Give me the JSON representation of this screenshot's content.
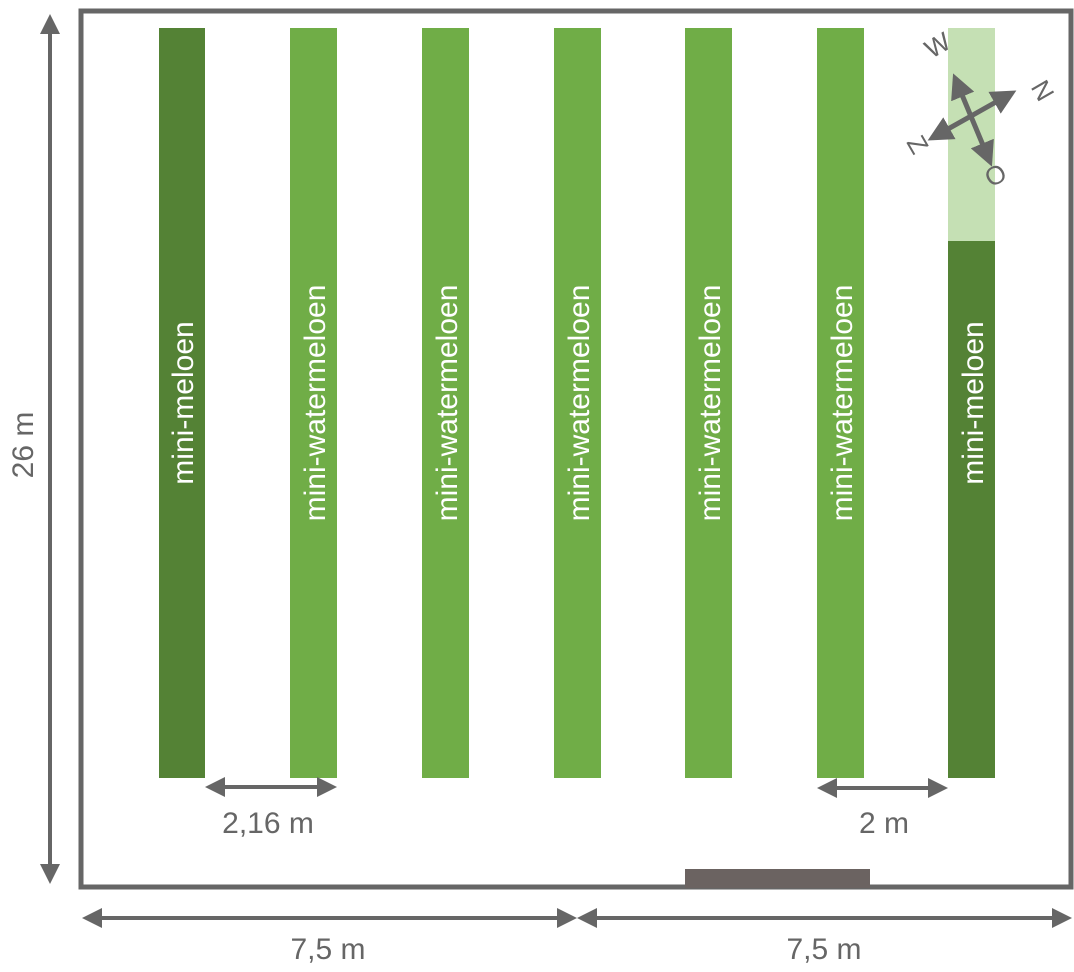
{
  "colors": {
    "outline": "#666666",
    "dark_green": "#548235",
    "light_green": "#70ad47",
    "pale_green": "#c5e0b4",
    "door": "#6b6361",
    "text_on_bar": "#ffffff",
    "dimension": "#666666"
  },
  "rows": [
    {
      "label": "mini-meloen",
      "color": "dark_green"
    },
    {
      "label": "mini-watermeloen",
      "color": "light_green"
    },
    {
      "label": "mini-watermeloen",
      "color": "light_green"
    },
    {
      "label": "mini-watermeloen",
      "color": "light_green"
    },
    {
      "label": "mini-watermeloen",
      "color": "light_green"
    },
    {
      "label": "mini-watermeloen",
      "color": "light_green"
    },
    {
      "label": "mini-meloen",
      "color": "dark_green"
    }
  ],
  "dimensions": {
    "height": "26 m",
    "row_spacing": "2,16 m",
    "last_spacing": "2 m",
    "width_left": "7,5 m",
    "width_right": "7,5 m"
  },
  "compass": {
    "north": "N",
    "east": "O",
    "south": "Z",
    "west": "W"
  },
  "door_icon": "door-marker"
}
